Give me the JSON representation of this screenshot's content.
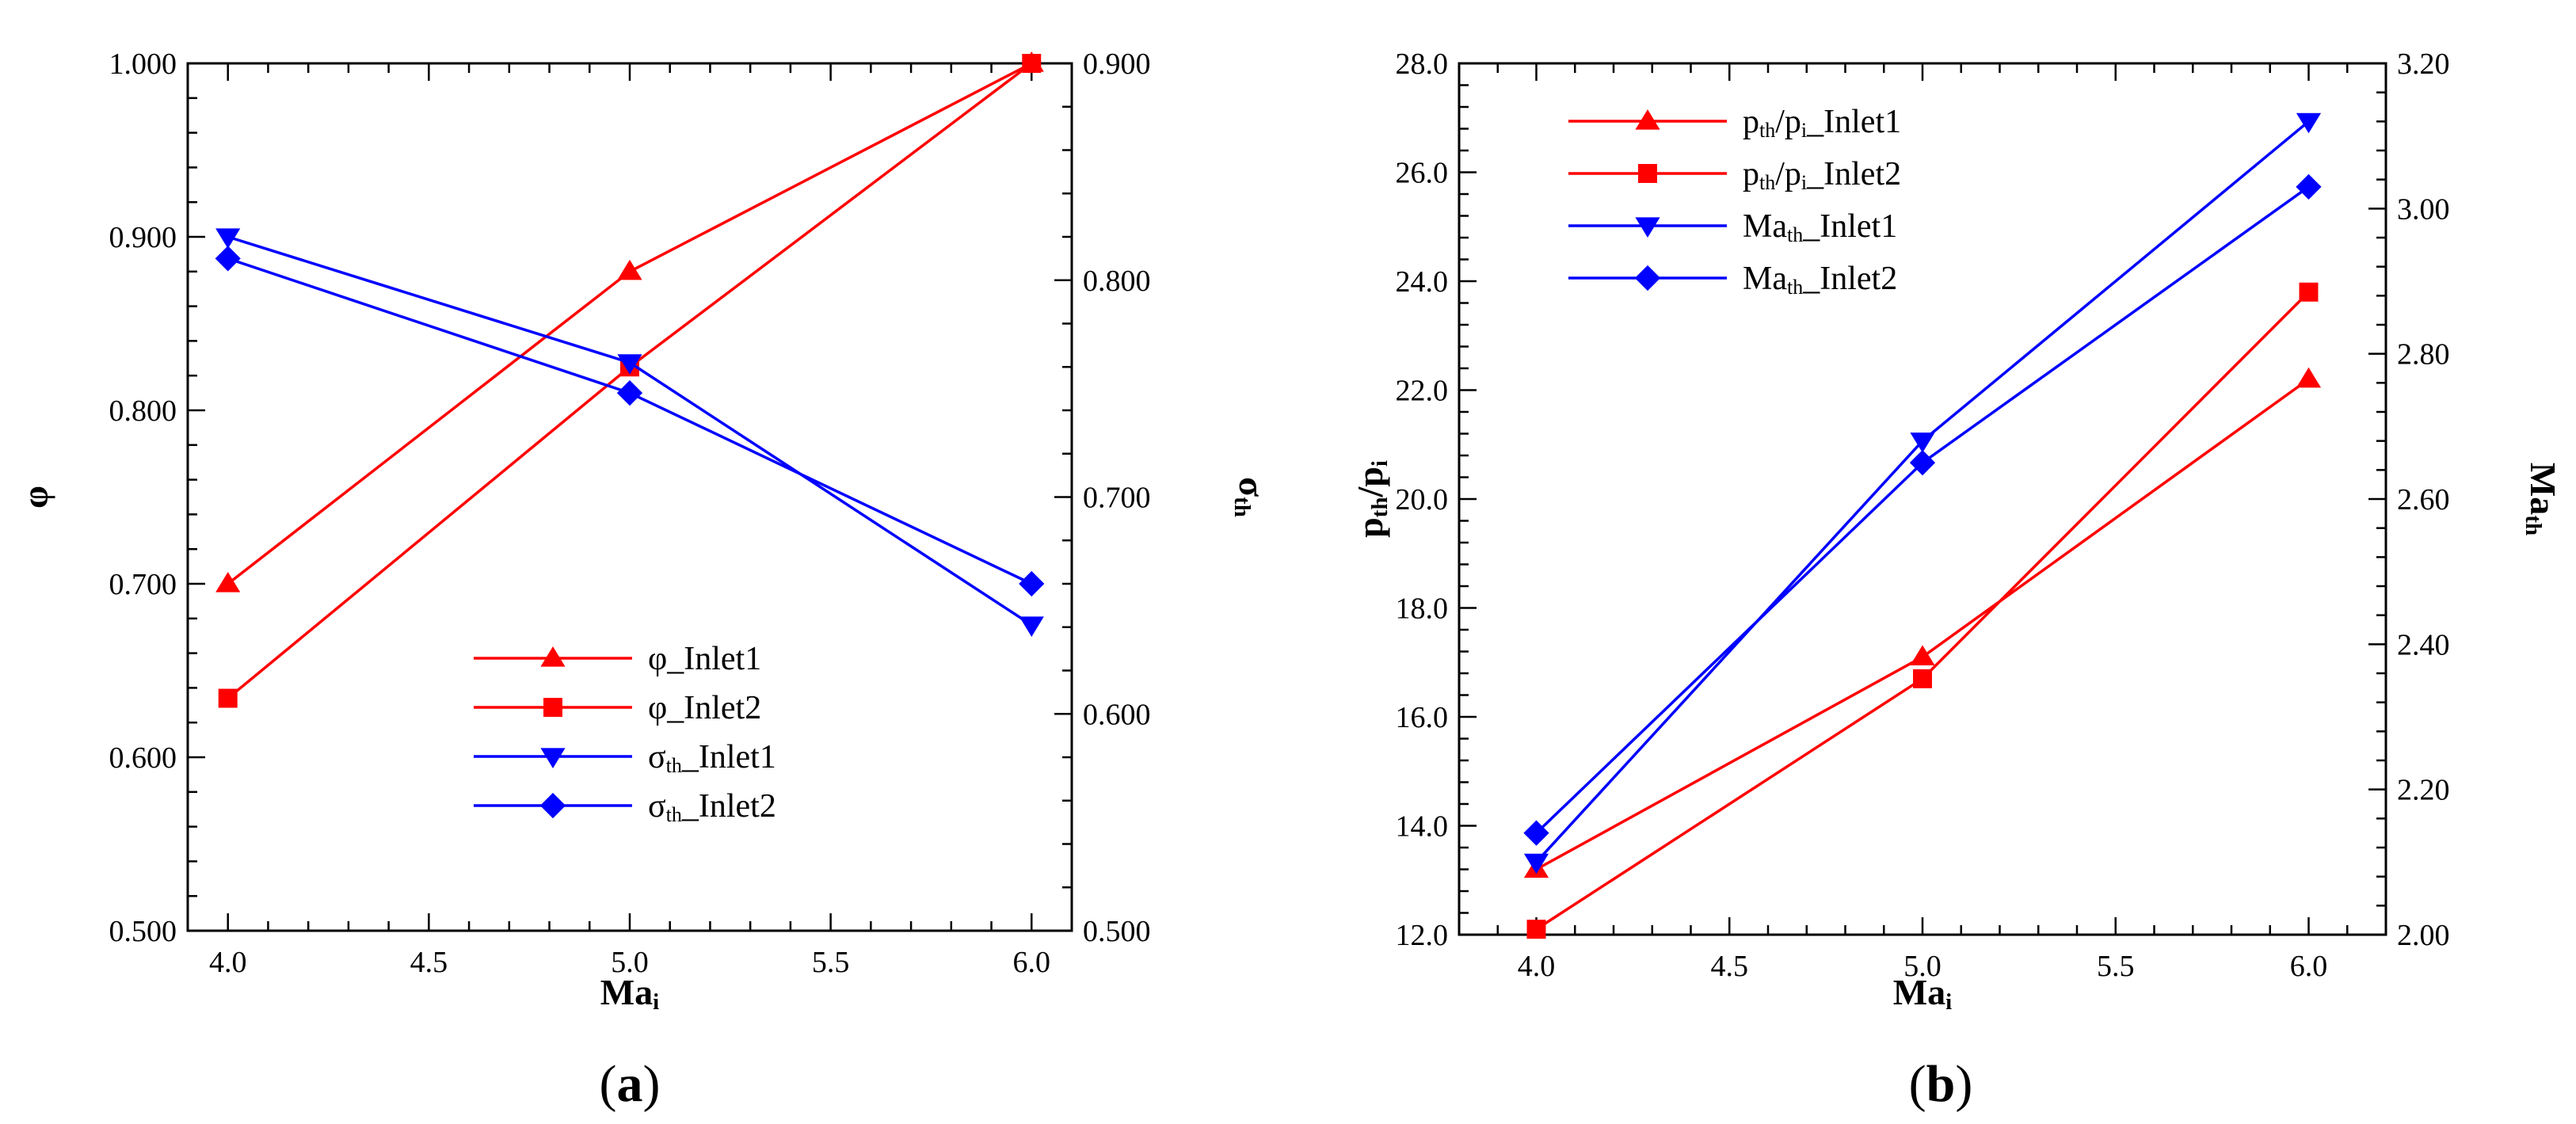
{
  "chart_data": [
    {
      "type": "line",
      "panel_label": "(a)",
      "x": [
        4.0,
        5.0,
        6.0
      ],
      "xlim": [
        3.9,
        6.1
      ],
      "ylim_left": [
        0.5,
        1.0
      ],
      "ylim_right": [
        0.5,
        0.9
      ],
      "xticks": [
        "4.0",
        "4.5",
        "5.0",
        "5.5",
        "6.0"
      ],
      "yticks_left": [
        "0.500",
        "0.600",
        "0.700",
        "0.800",
        "0.900",
        "1.000"
      ],
      "yticks_right": [
        "0.500",
        "0.600",
        "0.700",
        "0.800",
        "0.900"
      ],
      "xlabel": {
        "main": "Ma",
        "sub": "i"
      },
      "ylabel_left": {
        "main": "φ",
        "sub": ""
      },
      "ylabel_right": {
        "main": "σ",
        "sub": "th"
      },
      "grid": false,
      "legend_position": "lower-right",
      "series": [
        {
          "name": {
            "main": "φ",
            "sub": "",
            "rest": "_Inlet1"
          },
          "axis": "left",
          "marker": "triangle-up",
          "color": "#ff0000",
          "values": [
            0.7,
            0.88,
            1.0
          ]
        },
        {
          "name": {
            "main": "φ",
            "sub": "",
            "rest": "_Inlet2"
          },
          "axis": "left",
          "marker": "square",
          "color": "#ff0000",
          "values": [
            0.634,
            0.825,
            1.0
          ]
        },
        {
          "name": {
            "main": "σ",
            "sub": "th",
            "rest": "_Inlet1"
          },
          "axis": "right",
          "marker": "triangle-down",
          "color": "#0000ff",
          "values": [
            0.82,
            0.762,
            0.641
          ]
        },
        {
          "name": {
            "main": "σ",
            "sub": "th",
            "rest": "_Inlet2"
          },
          "axis": "right",
          "marker": "diamond",
          "color": "#0000ff",
          "values": [
            0.81,
            0.748,
            0.66
          ]
        }
      ]
    },
    {
      "type": "line",
      "panel_label": "(b)",
      "x": [
        4.0,
        5.0,
        6.0
      ],
      "xlim": [
        3.8,
        6.2
      ],
      "ylim_left": [
        12.0,
        28.0
      ],
      "ylim_right": [
        2.0,
        3.2
      ],
      "xticks": [
        "4.0",
        "4.5",
        "5.0",
        "5.5",
        "6.0"
      ],
      "yticks_left": [
        "12.0",
        "14.0",
        "16.0",
        "18.0",
        "20.0",
        "22.0",
        "24.0",
        "26.0",
        "28.0"
      ],
      "yticks_right": [
        "2.00",
        "2.20",
        "2.40",
        "2.60",
        "2.80",
        "3.00",
        "3.20"
      ],
      "xlabel": {
        "main": "Ma",
        "sub": "i"
      },
      "ylabel_left": {
        "main": "p",
        "sub": "th",
        "rest": "/p",
        "sub2": "i"
      },
      "ylabel_right": {
        "main": "Ma",
        "sub": "th"
      },
      "grid": false,
      "legend_position": "top-left",
      "series": [
        {
          "name": {
            "main": "p",
            "sub": "th",
            "rest": "/p",
            "sub2": "i",
            "rest2": "_Inlet1"
          },
          "axis": "left",
          "marker": "triangle-up",
          "color": "#ff0000",
          "values": [
            13.2,
            17.1,
            22.2
          ]
        },
        {
          "name": {
            "main": "p",
            "sub": "th",
            "rest": "/p",
            "sub2": "i",
            "rest2": "_Inlet2"
          },
          "axis": "left",
          "marker": "square",
          "color": "#ff0000",
          "values": [
            12.1,
            16.7,
            23.8
          ]
        },
        {
          "name": {
            "main": "Ma",
            "sub": "th",
            "rest": "_Inlet1"
          },
          "axis": "right",
          "marker": "triangle-down",
          "color": "#0000ff",
          "values": [
            2.1,
            2.68,
            3.12
          ]
        },
        {
          "name": {
            "main": "Ma",
            "sub": "th",
            "rest": "_Inlet2"
          },
          "axis": "right",
          "marker": "diamond",
          "color": "#0000ff",
          "values": [
            2.14,
            2.65,
            3.03
          ]
        }
      ]
    }
  ]
}
